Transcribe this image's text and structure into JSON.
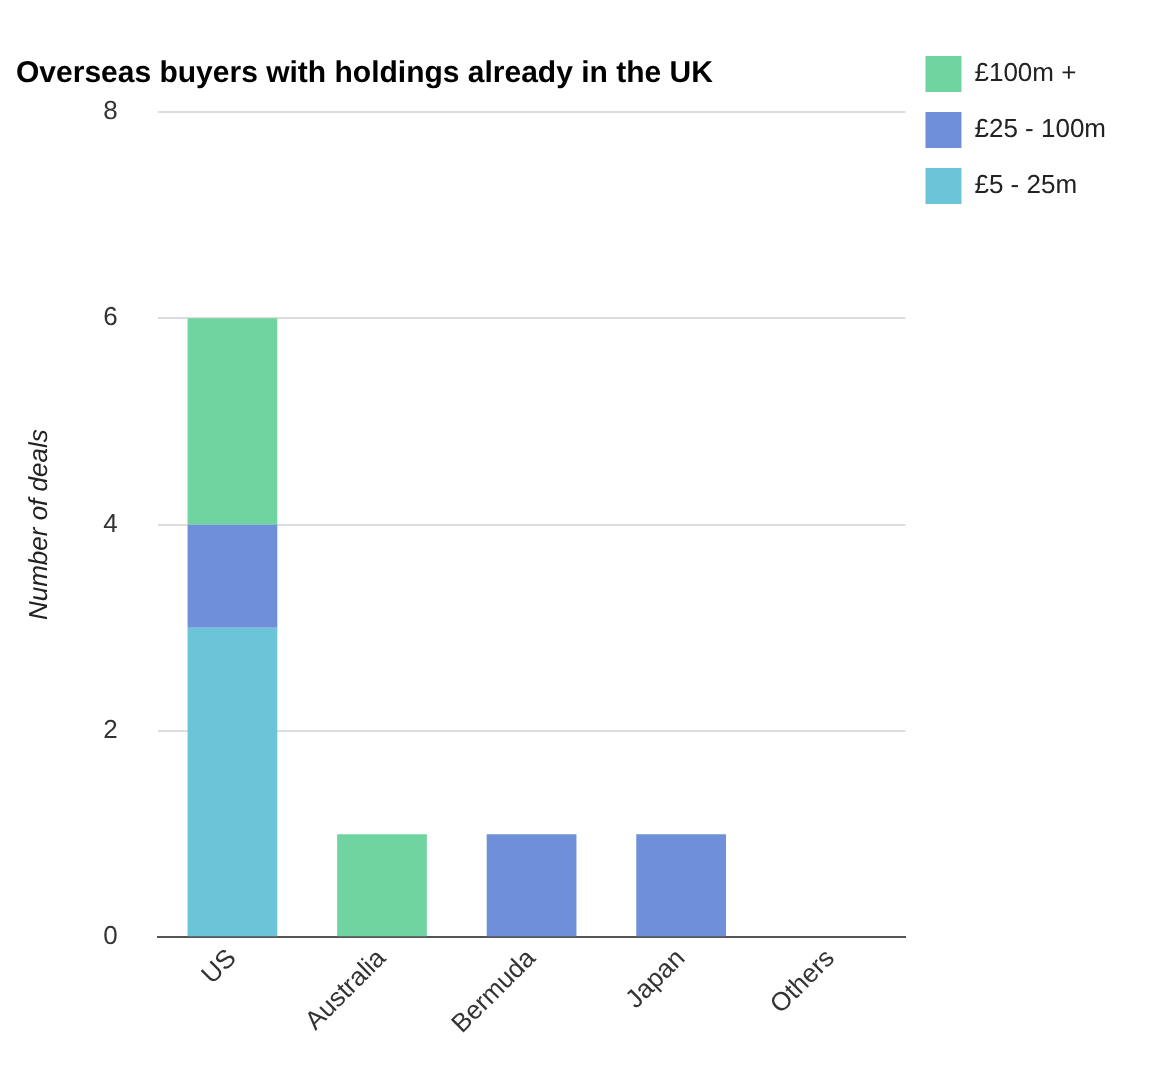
{
  "chart_data": {
    "type": "bar",
    "title": "Overseas buyers with holdings already in the UK",
    "ylabel": "Number of deals",
    "categories": [
      "US",
      "Australia",
      "Bermuda",
      "Japan",
      "Others"
    ],
    "stacked": true,
    "series": [
      {
        "name": "£5 - 25m",
        "color": "#6cc4d8",
        "values": [
          3,
          0,
          0,
          0,
          0
        ]
      },
      {
        "name": "£25 - 100m",
        "color": "#6f8fd8",
        "values": [
          1,
          0,
          1,
          1,
          0
        ]
      },
      {
        "name": "£100m +",
        "color": "#6fd4a0",
        "values": [
          2,
          1,
          0,
          0,
          0
        ]
      }
    ],
    "ylim": [
      0,
      8
    ],
    "yticks": [
      0,
      2,
      4,
      6,
      8
    ],
    "grid": "y",
    "legend": "top right"
  }
}
